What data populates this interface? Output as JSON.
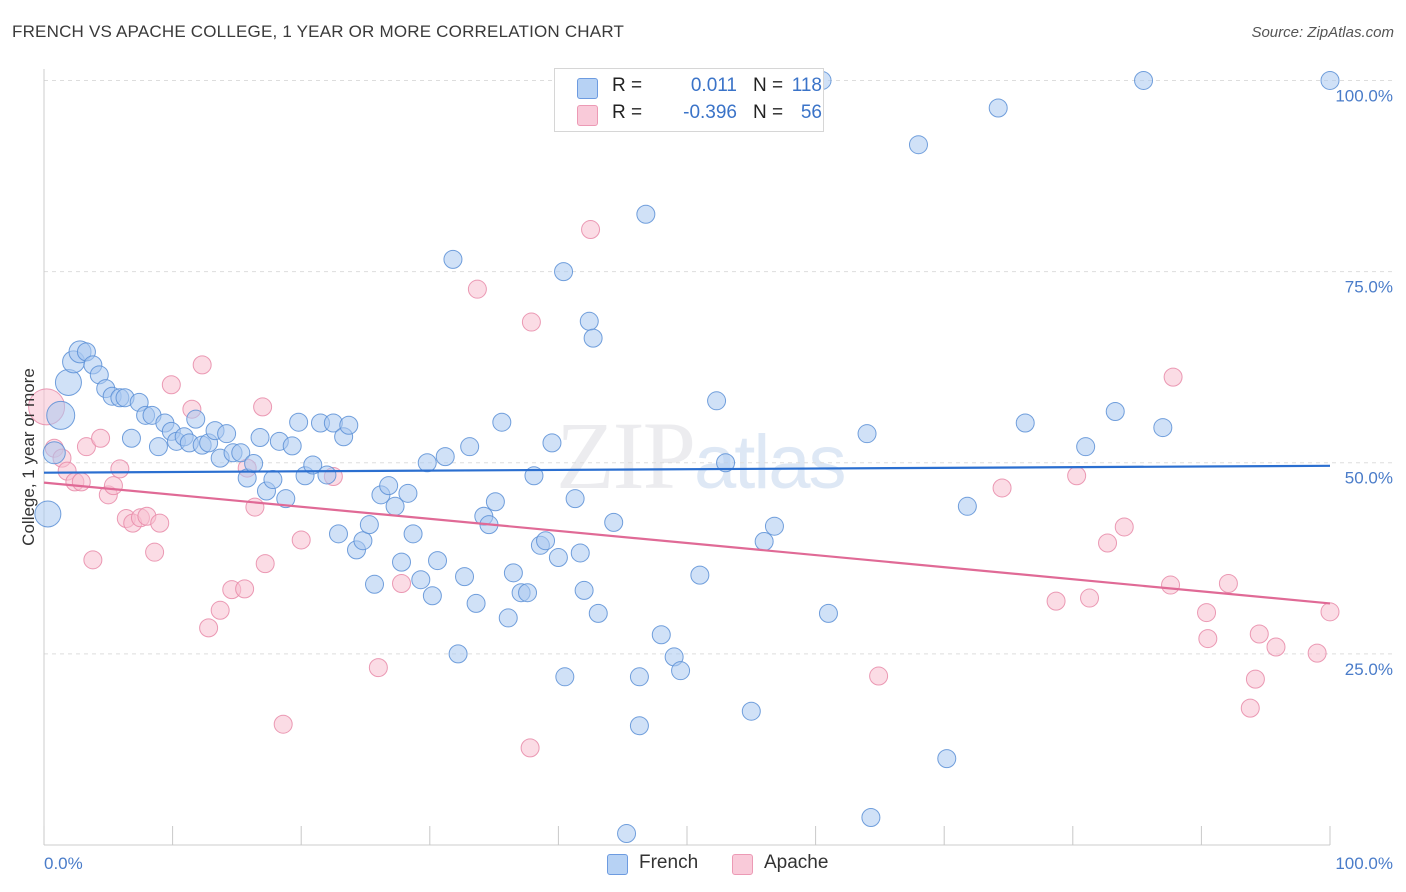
{
  "title": "FRENCH VS APACHE COLLEGE, 1 YEAR OR MORE CORRELATION CHART",
  "source": "Source: ZipAtlas.com",
  "watermark": {
    "zip": "ZIP",
    "atlas": "atlas"
  },
  "legend": {
    "r_label": "R =",
    "n_label": "N =",
    "french": {
      "r": "0.011",
      "n": "118"
    },
    "apache": {
      "r": "-0.396",
      "n": "56"
    }
  },
  "bottom_legend": {
    "french": "French",
    "apache": "Apache"
  },
  "colors": {
    "french_fill": "#a9c8f0",
    "french_stroke": "#5b8fd6",
    "french_line": "#2b6fd0",
    "apache_fill": "#f7bfd0",
    "apache_stroke": "#e88aa8",
    "apache_line": "#e06a96",
    "axis_label": "#4a7cc9"
  },
  "chart_data": {
    "type": "scatter",
    "title": "FRENCH VS APACHE COLLEGE, 1 YEAR OR MORE CORRELATION CHART",
    "xlabel": "",
    "ylabel": "College, 1 year or more",
    "xlim": [
      0,
      100
    ],
    "ylim": [
      0,
      101.5
    ],
    "x_tick_labels": [
      "0.0%",
      "100.0%"
    ],
    "y_tick_labels": [
      "25.0%",
      "50.0%",
      "75.0%",
      "100.0%"
    ],
    "y_ticks": [
      25,
      50,
      75,
      100
    ],
    "grid": "horizontal dashed",
    "legend_position": "top-center",
    "series": [
      {
        "name": "French",
        "trend": {
          "x": [
            0,
            100
          ],
          "y": [
            48.7,
            49.6
          ]
        },
        "points": [
          {
            "x": 0.3,
            "y": 43.3,
            "s": 13
          },
          {
            "x": 0.8,
            "y": 51.3,
            "s": 11
          },
          {
            "x": 1.3,
            "y": 56.2,
            "s": 14
          },
          {
            "x": 1.9,
            "y": 60.5,
            "s": 13
          },
          {
            "x": 2.3,
            "y": 63.2,
            "s": 11
          },
          {
            "x": 2.8,
            "y": 64.5,
            "s": 11
          },
          {
            "x": 3.3,
            "y": 64.5,
            "s": 9
          },
          {
            "x": 3.8,
            "y": 62.8,
            "s": 9
          },
          {
            "x": 4.3,
            "y": 61.5,
            "s": 9
          },
          {
            "x": 4.8,
            "y": 59.7,
            "s": 9
          },
          {
            "x": 5.3,
            "y": 58.7,
            "s": 9
          },
          {
            "x": 5.9,
            "y": 58.5,
            "s": 9
          },
          {
            "x": 6.3,
            "y": 58.5,
            "s": 9
          },
          {
            "x": 6.8,
            "y": 53.2,
            "s": 9
          },
          {
            "x": 7.4,
            "y": 57.9,
            "s": 9
          },
          {
            "x": 7.9,
            "y": 56.2,
            "s": 9
          },
          {
            "x": 8.4,
            "y": 56.2,
            "s": 9
          },
          {
            "x": 8.9,
            "y": 52.1,
            "s": 9
          },
          {
            "x": 9.4,
            "y": 55.2,
            "s": 9
          },
          {
            "x": 9.9,
            "y": 54.1,
            "s": 9
          },
          {
            "x": 10.3,
            "y": 52.8,
            "s": 9
          },
          {
            "x": 10.9,
            "y": 53.4,
            "s": 9
          },
          {
            "x": 11.3,
            "y": 52.6,
            "s": 9
          },
          {
            "x": 11.8,
            "y": 55.7,
            "s": 9
          },
          {
            "x": 12.3,
            "y": 52.3,
            "s": 9
          },
          {
            "x": 12.8,
            "y": 52.6,
            "s": 9
          },
          {
            "x": 13.3,
            "y": 54.2,
            "s": 9
          },
          {
            "x": 13.7,
            "y": 50.6,
            "s": 9
          },
          {
            "x": 14.2,
            "y": 53.8,
            "s": 9
          },
          {
            "x": 14.7,
            "y": 51.3,
            "s": 9
          },
          {
            "x": 15.3,
            "y": 51.3,
            "s": 9
          },
          {
            "x": 15.8,
            "y": 48.0,
            "s": 9
          },
          {
            "x": 16.3,
            "y": 49.9,
            "s": 9
          },
          {
            "x": 16.8,
            "y": 53.3,
            "s": 9
          },
          {
            "x": 17.3,
            "y": 46.3,
            "s": 9
          },
          {
            "x": 17.8,
            "y": 47.8,
            "s": 9
          },
          {
            "x": 18.3,
            "y": 52.8,
            "s": 9
          },
          {
            "x": 18.8,
            "y": 45.3,
            "s": 9
          },
          {
            "x": 19.3,
            "y": 52.2,
            "s": 9
          },
          {
            "x": 19.8,
            "y": 55.3,
            "s": 9
          },
          {
            "x": 20.3,
            "y": 48.3,
            "s": 9
          },
          {
            "x": 20.9,
            "y": 49.7,
            "s": 9
          },
          {
            "x": 21.5,
            "y": 55.2,
            "s": 9
          },
          {
            "x": 22.0,
            "y": 48.4,
            "s": 9
          },
          {
            "x": 22.5,
            "y": 55.2,
            "s": 9
          },
          {
            "x": 22.9,
            "y": 40.7,
            "s": 9
          },
          {
            "x": 23.3,
            "y": 53.4,
            "s": 9
          },
          {
            "x": 23.7,
            "y": 54.9,
            "s": 9
          },
          {
            "x": 24.3,
            "y": 38.6,
            "s": 9
          },
          {
            "x": 24.8,
            "y": 39.8,
            "s": 9
          },
          {
            "x": 25.3,
            "y": 41.9,
            "s": 9
          },
          {
            "x": 25.7,
            "y": 34.1,
            "s": 9
          },
          {
            "x": 26.2,
            "y": 45.8,
            "s": 9
          },
          {
            "x": 26.8,
            "y": 47.0,
            "s": 9
          },
          {
            "x": 27.3,
            "y": 44.3,
            "s": 9
          },
          {
            "x": 27.8,
            "y": 37.0,
            "s": 9
          },
          {
            "x": 28.3,
            "y": 46.0,
            "s": 9
          },
          {
            "x": 28.7,
            "y": 40.7,
            "s": 9
          },
          {
            "x": 29.3,
            "y": 34.7,
            "s": 9
          },
          {
            "x": 29.8,
            "y": 50.0,
            "s": 9
          },
          {
            "x": 30.2,
            "y": 32.6,
            "s": 9
          },
          {
            "x": 30.6,
            "y": 37.2,
            "s": 9
          },
          {
            "x": 31.2,
            "y": 50.8,
            "s": 9
          },
          {
            "x": 31.8,
            "y": 76.6,
            "s": 9
          },
          {
            "x": 32.2,
            "y": 25.0,
            "s": 9
          },
          {
            "x": 32.7,
            "y": 35.1,
            "s": 9
          },
          {
            "x": 33.1,
            "y": 52.1,
            "s": 9
          },
          {
            "x": 33.6,
            "y": 31.6,
            "s": 9
          },
          {
            "x": 34.2,
            "y": 43.0,
            "s": 9
          },
          {
            "x": 34.6,
            "y": 41.9,
            "s": 9
          },
          {
            "x": 35.1,
            "y": 44.9,
            "s": 9
          },
          {
            "x": 35.6,
            "y": 55.3,
            "s": 9
          },
          {
            "x": 36.1,
            "y": 29.7,
            "s": 9
          },
          {
            "x": 36.5,
            "y": 35.6,
            "s": 9
          },
          {
            "x": 37.1,
            "y": 33.0,
            "s": 9
          },
          {
            "x": 37.6,
            "y": 33.0,
            "s": 9
          },
          {
            "x": 38.1,
            "y": 48.3,
            "s": 9
          },
          {
            "x": 38.6,
            "y": 39.2,
            "s": 9
          },
          {
            "x": 39.0,
            "y": 39.8,
            "s": 9
          },
          {
            "x": 39.5,
            "y": 52.6,
            "s": 9
          },
          {
            "x": 40.0,
            "y": 37.6,
            "s": 9
          },
          {
            "x": 40.4,
            "y": 75.0,
            "s": 9
          },
          {
            "x": 40.5,
            "y": 22.0,
            "s": 9
          },
          {
            "x": 41.3,
            "y": 45.3,
            "s": 9
          },
          {
            "x": 41.7,
            "y": 38.2,
            "s": 9
          },
          {
            "x": 42.0,
            "y": 33.3,
            "s": 9
          },
          {
            "x": 42.4,
            "y": 68.5,
            "s": 9
          },
          {
            "x": 42.7,
            "y": 66.3,
            "s": 9
          },
          {
            "x": 43.1,
            "y": 30.3,
            "s": 9
          },
          {
            "x": 44.3,
            "y": 42.2,
            "s": 9
          },
          {
            "x": 45.3,
            "y": 1.5,
            "s": 9
          },
          {
            "x": 46.3,
            "y": 22.0,
            "s": 9
          },
          {
            "x": 46.3,
            "y": 15.6,
            "s": 9
          },
          {
            "x": 46.8,
            "y": 82.5,
            "s": 9
          },
          {
            "x": 48.0,
            "y": 27.5,
            "s": 9
          },
          {
            "x": 49.0,
            "y": 24.6,
            "s": 9
          },
          {
            "x": 49.5,
            "y": 22.8,
            "s": 9
          },
          {
            "x": 51.0,
            "y": 35.3,
            "s": 9
          },
          {
            "x": 52.3,
            "y": 58.1,
            "s": 9
          },
          {
            "x": 53.0,
            "y": 50.0,
            "s": 9
          },
          {
            "x": 55.0,
            "y": 17.5,
            "s": 9
          },
          {
            "x": 56.0,
            "y": 39.7,
            "s": 9
          },
          {
            "x": 56.8,
            "y": 41.7,
            "s": 9
          },
          {
            "x": 60.5,
            "y": 100.0,
            "s": 9
          },
          {
            "x": 61.0,
            "y": 30.3,
            "s": 9
          },
          {
            "x": 64.0,
            "y": 53.8,
            "s": 9
          },
          {
            "x": 64.3,
            "y": 3.6,
            "s": 9
          },
          {
            "x": 68.0,
            "y": 91.6,
            "s": 9
          },
          {
            "x": 70.2,
            "y": 11.3,
            "s": 9
          },
          {
            "x": 71.8,
            "y": 44.3,
            "s": 9
          },
          {
            "x": 74.2,
            "y": 96.4,
            "s": 9
          },
          {
            "x": 76.3,
            "y": 55.2,
            "s": 9
          },
          {
            "x": 81.0,
            "y": 52.1,
            "s": 9
          },
          {
            "x": 83.3,
            "y": 56.7,
            "s": 9
          },
          {
            "x": 85.5,
            "y": 100.0,
            "s": 9
          },
          {
            "x": 87.0,
            "y": 54.6,
            "s": 9
          },
          {
            "x": 100.0,
            "y": 100.0,
            "s": 9
          }
        ]
      },
      {
        "name": "Apache",
        "trend": {
          "x": [
            0,
            100
          ],
          "y": [
            47.4,
            31.6
          ]
        },
        "points": [
          {
            "x": 0.2,
            "y": 57.3,
            "s": 18
          },
          {
            "x": 0.8,
            "y": 51.9,
            "s": 9
          },
          {
            "x": 1.4,
            "y": 50.6,
            "s": 9
          },
          {
            "x": 1.8,
            "y": 48.9,
            "s": 9
          },
          {
            "x": 2.4,
            "y": 47.5,
            "s": 9
          },
          {
            "x": 2.9,
            "y": 47.5,
            "s": 9
          },
          {
            "x": 3.3,
            "y": 52.1,
            "s": 9
          },
          {
            "x": 3.8,
            "y": 37.3,
            "s": 9
          },
          {
            "x": 4.4,
            "y": 53.2,
            "s": 9
          },
          {
            "x": 5.0,
            "y": 45.8,
            "s": 9
          },
          {
            "x": 5.4,
            "y": 47.0,
            "s": 9
          },
          {
            "x": 5.9,
            "y": 49.2,
            "s": 9
          },
          {
            "x": 6.4,
            "y": 42.7,
            "s": 9
          },
          {
            "x": 6.9,
            "y": 42.1,
            "s": 9
          },
          {
            "x": 7.5,
            "y": 42.8,
            "s": 9
          },
          {
            "x": 8.0,
            "y": 43.0,
            "s": 9
          },
          {
            "x": 8.6,
            "y": 38.3,
            "s": 9
          },
          {
            "x": 9.0,
            "y": 42.1,
            "s": 9
          },
          {
            "x": 9.9,
            "y": 60.2,
            "s": 9
          },
          {
            "x": 11.5,
            "y": 57.0,
            "s": 9
          },
          {
            "x": 12.3,
            "y": 62.8,
            "s": 9
          },
          {
            "x": 12.8,
            "y": 28.4,
            "s": 9
          },
          {
            "x": 13.7,
            "y": 30.7,
            "s": 9
          },
          {
            "x": 14.6,
            "y": 33.4,
            "s": 9
          },
          {
            "x": 15.6,
            "y": 33.5,
            "s": 9
          },
          {
            "x": 15.8,
            "y": 49.3,
            "s": 9
          },
          {
            "x": 16.4,
            "y": 44.2,
            "s": 9
          },
          {
            "x": 17.0,
            "y": 57.3,
            "s": 9
          },
          {
            "x": 17.2,
            "y": 36.8,
            "s": 9
          },
          {
            "x": 18.6,
            "y": 15.8,
            "s": 9
          },
          {
            "x": 20.0,
            "y": 39.9,
            "s": 9
          },
          {
            "x": 22.5,
            "y": 48.2,
            "s": 9
          },
          {
            "x": 26.0,
            "y": 23.2,
            "s": 9
          },
          {
            "x": 27.8,
            "y": 34.2,
            "s": 9
          },
          {
            "x": 33.7,
            "y": 72.7,
            "s": 9
          },
          {
            "x": 37.8,
            "y": 12.7,
            "s": 9
          },
          {
            "x": 37.9,
            "y": 68.4,
            "s": 9
          },
          {
            "x": 42.5,
            "y": 80.5,
            "s": 9
          },
          {
            "x": 64.9,
            "y": 22.1,
            "s": 9
          },
          {
            "x": 74.5,
            "y": 46.7,
            "s": 9
          },
          {
            "x": 78.7,
            "y": 31.9,
            "s": 9
          },
          {
            "x": 80.3,
            "y": 48.3,
            "s": 9
          },
          {
            "x": 81.3,
            "y": 32.3,
            "s": 9
          },
          {
            "x": 82.7,
            "y": 39.5,
            "s": 9
          },
          {
            "x": 84.0,
            "y": 41.6,
            "s": 9
          },
          {
            "x": 87.8,
            "y": 61.2,
            "s": 9
          },
          {
            "x": 87.6,
            "y": 34.0,
            "s": 9
          },
          {
            "x": 90.4,
            "y": 30.4,
            "s": 9
          },
          {
            "x": 90.5,
            "y": 27.0,
            "s": 9
          },
          {
            "x": 92.1,
            "y": 34.2,
            "s": 9
          },
          {
            "x": 93.8,
            "y": 17.9,
            "s": 9
          },
          {
            "x": 94.2,
            "y": 21.7,
            "s": 9
          },
          {
            "x": 94.5,
            "y": 27.6,
            "s": 9
          },
          {
            "x": 95.8,
            "y": 25.9,
            "s": 9
          },
          {
            "x": 99.0,
            "y": 25.1,
            "s": 9
          },
          {
            "x": 100.0,
            "y": 30.5,
            "s": 9
          }
        ]
      }
    ]
  }
}
